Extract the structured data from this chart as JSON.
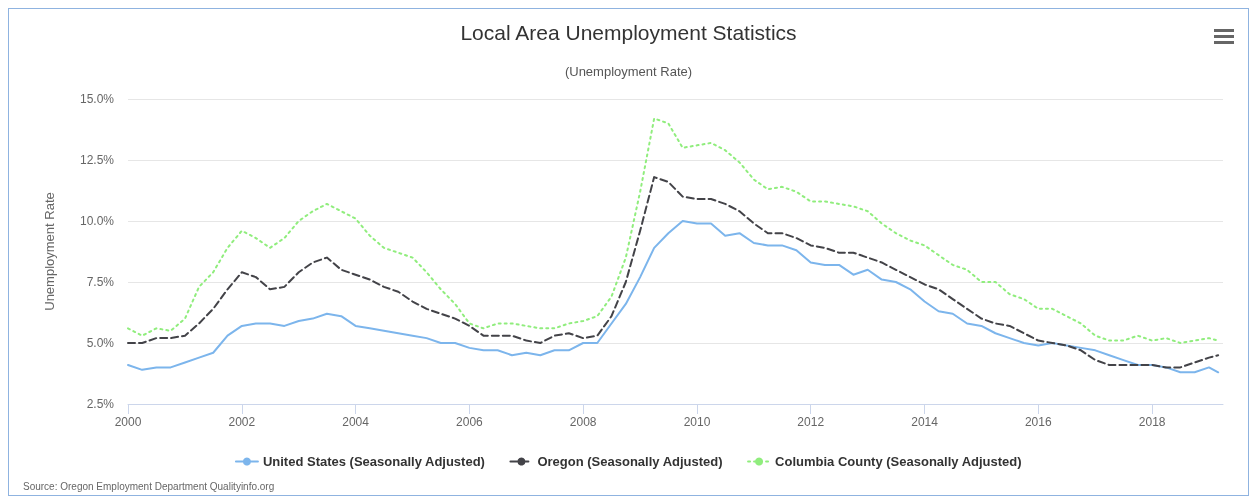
{
  "chart_data": {
    "type": "line",
    "title": "Local Area Unemployment Statistics",
    "subtitle": "(Unemployment Rate)",
    "ylabel": "Unemployment Rate",
    "annotations": [
      "Source: Oregon Employment Department Qualityinfo.org"
    ],
    "x": [
      "2000-01",
      "2000-04",
      "2000-07",
      "2000-10",
      "2001-01",
      "2001-04",
      "2001-07",
      "2001-10",
      "2002-01",
      "2002-04",
      "2002-07",
      "2002-10",
      "2003-01",
      "2003-04",
      "2003-07",
      "2003-10",
      "2004-01",
      "2004-04",
      "2004-07",
      "2004-10",
      "2005-01",
      "2005-04",
      "2005-07",
      "2005-10",
      "2006-01",
      "2006-04",
      "2006-07",
      "2006-10",
      "2007-01",
      "2007-04",
      "2007-07",
      "2007-10",
      "2008-01",
      "2008-04",
      "2008-07",
      "2008-10",
      "2009-01",
      "2009-04",
      "2009-07",
      "2009-10",
      "2010-01",
      "2010-04",
      "2010-07",
      "2010-10",
      "2011-01",
      "2011-04",
      "2011-07",
      "2011-10",
      "2012-01",
      "2012-04",
      "2012-07",
      "2012-10",
      "2013-01",
      "2013-04",
      "2013-07",
      "2013-10",
      "2014-01",
      "2014-04",
      "2014-07",
      "2014-10",
      "2015-01",
      "2015-04",
      "2015-07",
      "2015-10",
      "2016-01",
      "2016-04",
      "2016-07",
      "2016-10",
      "2017-01",
      "2017-04",
      "2017-07",
      "2017-10",
      "2018-01",
      "2018-04",
      "2018-07",
      "2018-10",
      "2019-01",
      "2019-03"
    ],
    "series": [
      {
        "name": "United States (Seasonally Adjusted)",
        "color": "#7cb5ec",
        "line_style": "solid",
        "values": [
          4.1,
          3.9,
          4.0,
          4.0,
          4.2,
          4.4,
          4.6,
          5.3,
          5.7,
          5.8,
          5.8,
          5.7,
          5.9,
          6.0,
          6.2,
          6.1,
          5.7,
          5.6,
          5.5,
          5.4,
          5.3,
          5.2,
          5.0,
          5.0,
          4.8,
          4.7,
          4.7,
          4.5,
          4.6,
          4.5,
          4.7,
          4.7,
          5.0,
          5.0,
          5.8,
          6.6,
          7.7,
          8.9,
          9.5,
          10.0,
          9.9,
          9.9,
          9.4,
          9.5,
          9.1,
          9.0,
          9.0,
          8.8,
          8.3,
          8.2,
          8.2,
          7.8,
          8.0,
          7.6,
          7.5,
          7.2,
          6.7,
          6.3,
          6.2,
          5.8,
          5.7,
          5.4,
          5.2,
          5.0,
          4.9,
          5.0,
          4.9,
          4.8,
          4.7,
          4.5,
          4.3,
          4.1,
          4.1,
          4.0,
          3.8,
          3.8,
          4.0,
          3.8
        ]
      },
      {
        "name": "Oregon (Seasonally Adjusted)",
        "color": "#434348",
        "line_style": "dashed",
        "values": [
          5.0,
          5.0,
          5.2,
          5.2,
          5.3,
          5.8,
          6.4,
          7.2,
          7.9,
          7.7,
          7.2,
          7.3,
          7.9,
          8.3,
          8.5,
          8.0,
          7.8,
          7.6,
          7.3,
          7.1,
          6.7,
          6.4,
          6.2,
          6.0,
          5.7,
          5.3,
          5.3,
          5.3,
          5.1,
          5.0,
          5.3,
          5.4,
          5.2,
          5.3,
          6.1,
          7.5,
          9.6,
          11.8,
          11.6,
          11.0,
          10.9,
          10.9,
          10.7,
          10.4,
          9.9,
          9.5,
          9.5,
          9.3,
          9.0,
          8.9,
          8.7,
          8.7,
          8.5,
          8.3,
          8.0,
          7.7,
          7.4,
          7.2,
          6.8,
          6.4,
          6.0,
          5.8,
          5.7,
          5.4,
          5.1,
          5.0,
          4.9,
          4.7,
          4.3,
          4.1,
          4.1,
          4.1,
          4.1,
          4.0,
          4.0,
          4.2,
          4.4,
          4.5
        ]
      },
      {
        "name": "Columbia County (Seasonally Adjusted)",
        "color": "#90ed7d",
        "line_style": "dotted",
        "values": [
          5.6,
          5.3,
          5.6,
          5.5,
          6.0,
          7.3,
          7.9,
          8.9,
          9.6,
          9.3,
          8.9,
          9.3,
          10.0,
          10.4,
          10.7,
          10.4,
          10.1,
          9.4,
          8.9,
          8.7,
          8.5,
          7.9,
          7.2,
          6.6,
          5.8,
          5.6,
          5.8,
          5.8,
          5.7,
          5.6,
          5.6,
          5.8,
          5.9,
          6.1,
          6.9,
          8.5,
          11.2,
          14.2,
          14.0,
          13.0,
          13.1,
          13.2,
          12.9,
          12.4,
          11.7,
          11.3,
          11.4,
          11.2,
          10.8,
          10.8,
          10.7,
          10.6,
          10.4,
          9.9,
          9.5,
          9.2,
          9.0,
          8.6,
          8.2,
          8.0,
          7.5,
          7.5,
          7.0,
          6.8,
          6.4,
          6.4,
          6.1,
          5.8,
          5.3,
          5.1,
          5.1,
          5.3,
          5.1,
          5.2,
          5.0,
          5.1,
          5.2,
          5.1
        ]
      }
    ],
    "xlim": [
      "2000-01",
      "2019-04"
    ],
    "xticks": [
      "2000",
      "2002",
      "2004",
      "2006",
      "2008",
      "2010",
      "2012",
      "2014",
      "2016",
      "2018"
    ],
    "ylim": [
      2.5,
      15
    ],
    "yticks": [
      {
        "value": 2.5,
        "label": "2.5%"
      },
      {
        "value": 5,
        "label": "5.0%"
      },
      {
        "value": 7.5,
        "label": "7.5%"
      },
      {
        "value": 10,
        "label": "10.0%"
      },
      {
        "value": 12.5,
        "label": "12.5%"
      },
      {
        "value": 15,
        "label": "15.0%"
      }
    ],
    "grid": "y",
    "legend": "bottom",
    "marker": "none"
  }
}
